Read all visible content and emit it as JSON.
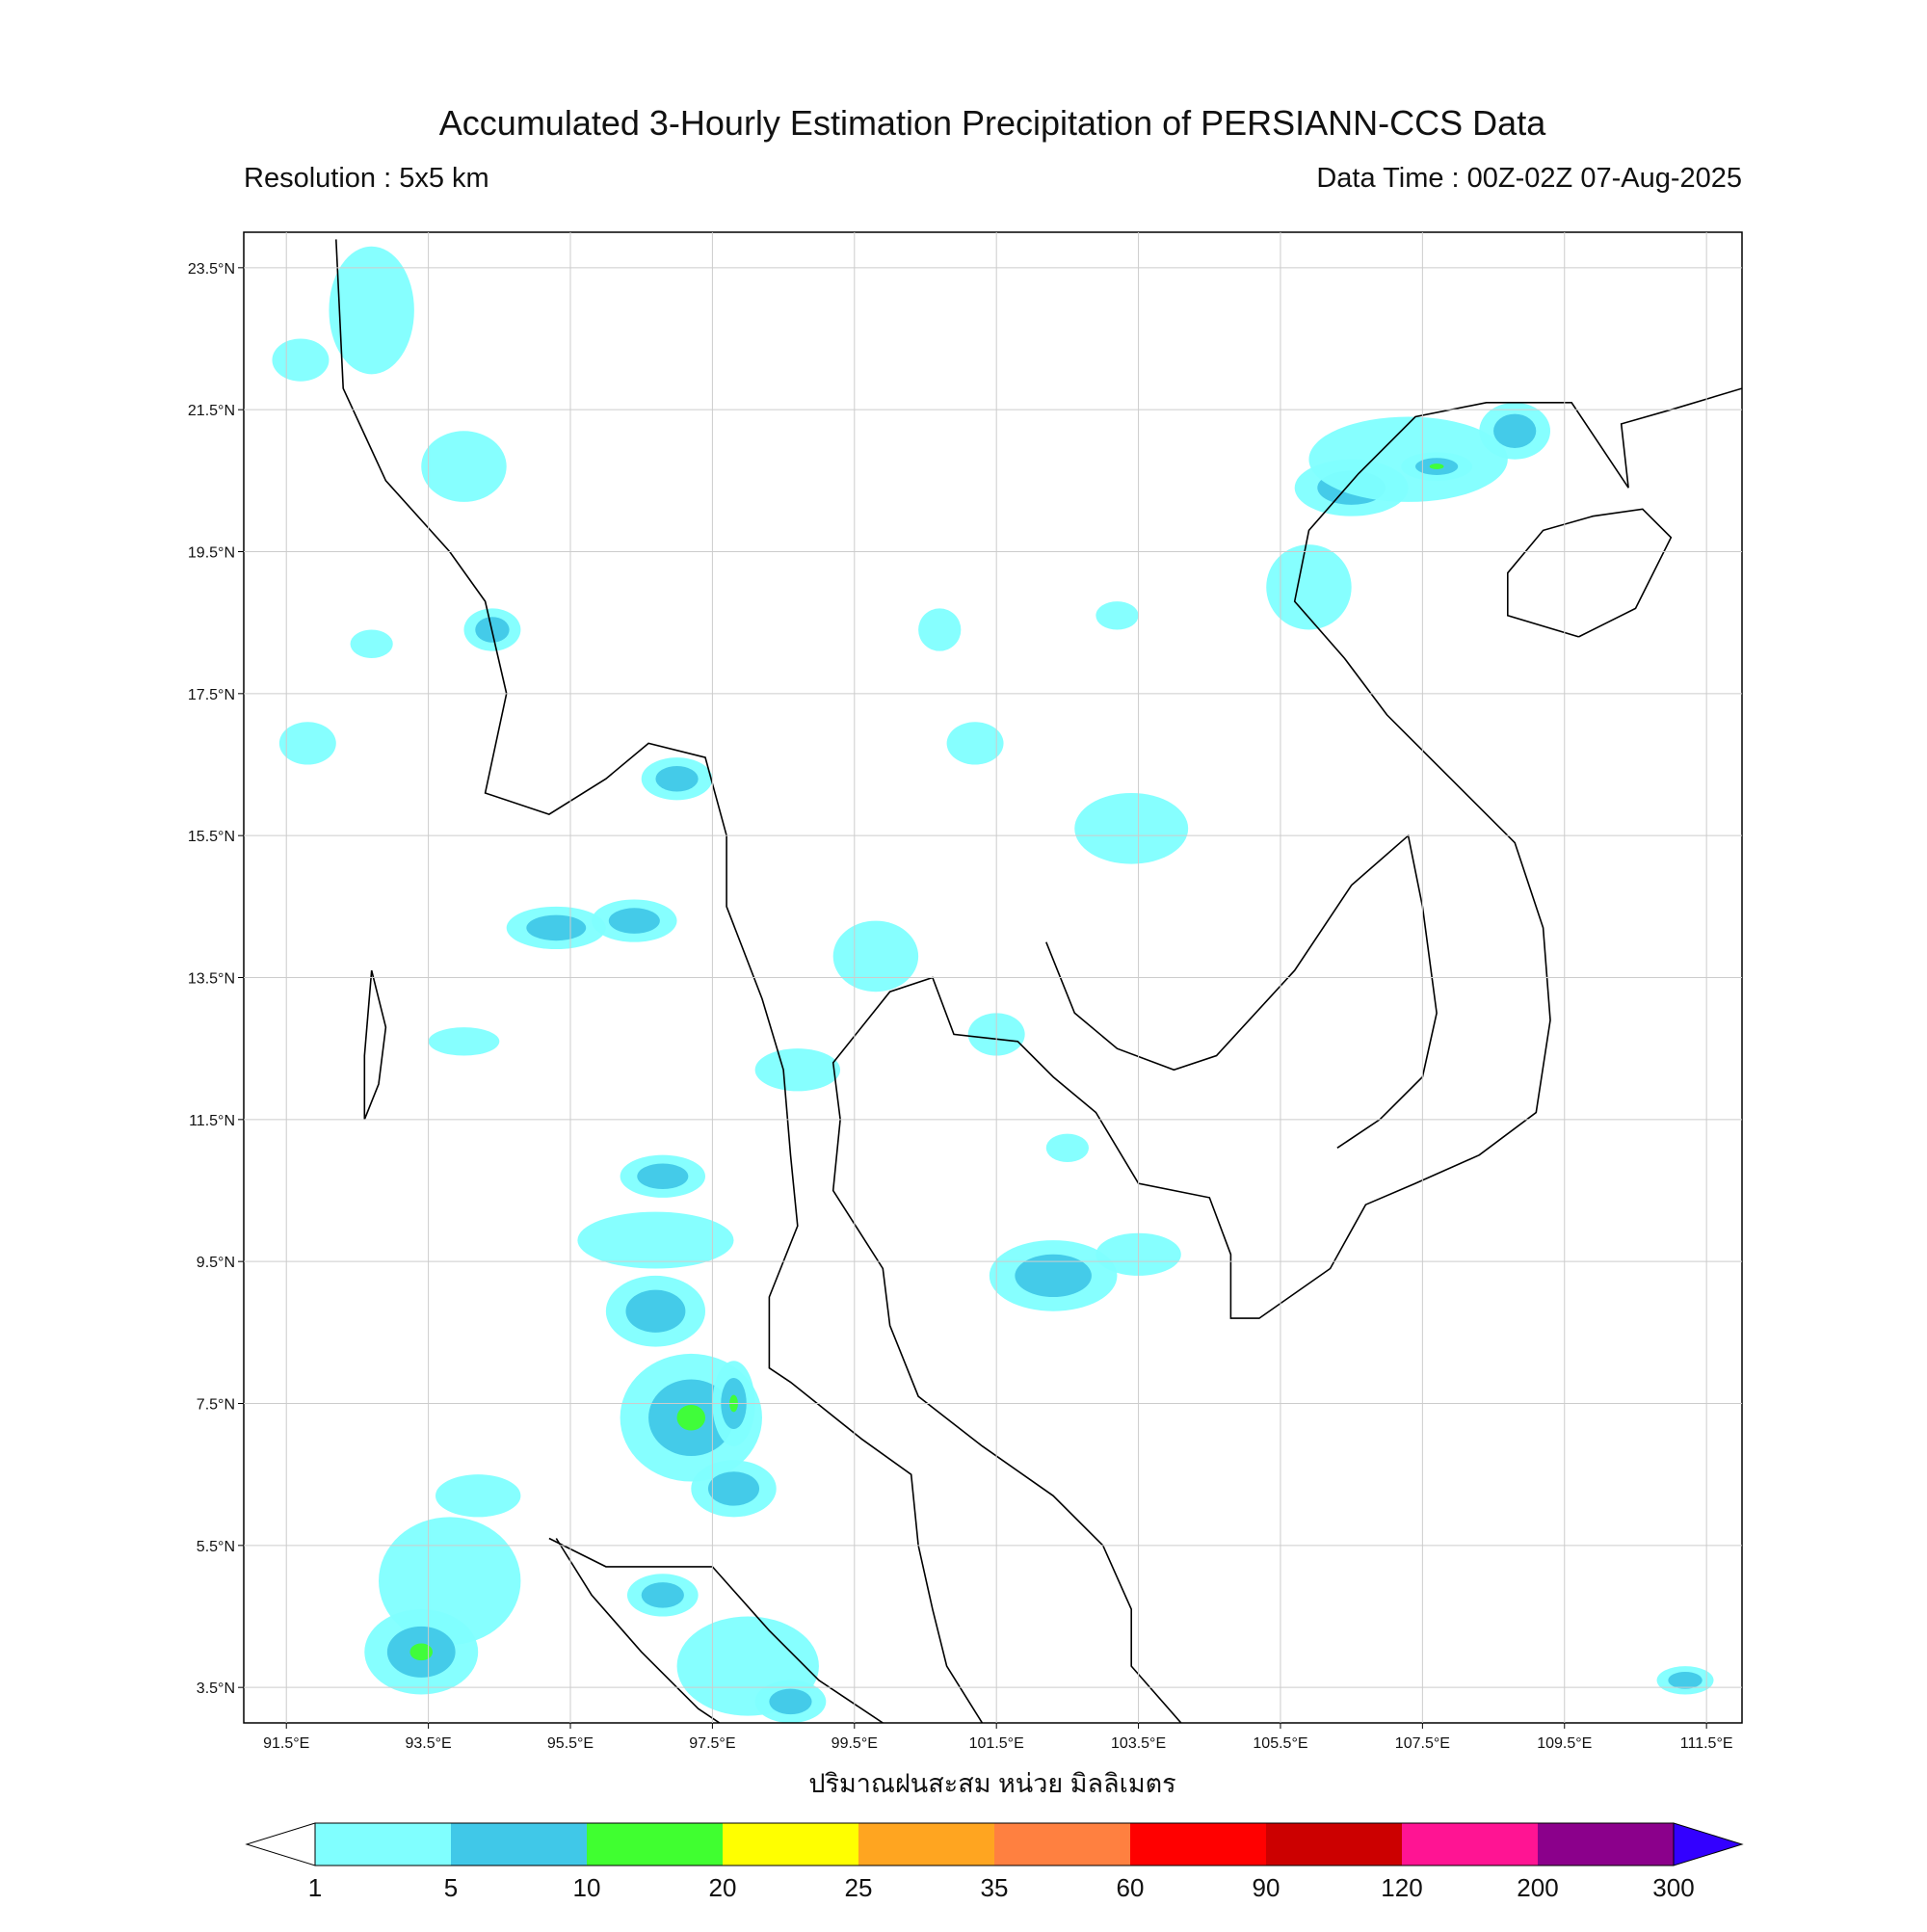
{
  "map": {
    "title": "Accumulated 3-Hourly Estimation Precipitation of PERSIANN-CCS Data",
    "resolution": "Resolution : 5x5 km",
    "data_time": "Data Time : 00Z-02Z 07-Aug-2025",
    "x_axis_label": "ปริมาณฝนสะสม หน่วย มิลลิเมตร",
    "xlim": [
      90.9,
      112
    ],
    "ylim": [
      3,
      24
    ],
    "grid": true,
    "xticks": [
      {
        "value": 91.5,
        "label": "91.5°E"
      },
      {
        "value": 93.5,
        "label": "93.5°E"
      },
      {
        "value": 95.5,
        "label": "95.5°E"
      },
      {
        "value": 97.5,
        "label": "97.5°E"
      },
      {
        "value": 99.5,
        "label": "99.5°E"
      },
      {
        "value": 101.5,
        "label": "101.5°E"
      },
      {
        "value": 103.5,
        "label": "103.5°E"
      },
      {
        "value": 105.5,
        "label": "105.5°E"
      },
      {
        "value": 107.5,
        "label": "107.5°E"
      },
      {
        "value": 109.5,
        "label": "109.5°E"
      },
      {
        "value": 111.5,
        "label": "111.5°E"
      }
    ],
    "yticks": [
      {
        "value": 3.5,
        "label": "3.5°N"
      },
      {
        "value": 5.5,
        "label": "5.5°N"
      },
      {
        "value": 7.5,
        "label": "7.5°N"
      },
      {
        "value": 9.5,
        "label": "9.5°N"
      },
      {
        "value": 11.5,
        "label": "11.5°N"
      },
      {
        "value": 13.5,
        "label": "13.5°N"
      },
      {
        "value": 15.5,
        "label": "15.5°N"
      },
      {
        "value": 17.5,
        "label": "17.5°N"
      },
      {
        "value": 19.5,
        "label": "19.5°N"
      },
      {
        "value": 21.5,
        "label": "21.5°N"
      },
      {
        "value": 23.5,
        "label": "23.5°N"
      }
    ],
    "colorbar": {
      "levels": [
        1,
        5,
        10,
        20,
        25,
        35,
        60,
        90,
        120,
        200,
        300
      ],
      "colors": [
        "#80ffff",
        "#40c8e8",
        "#40ff30",
        "#ffff00",
        "#ffa520",
        "#ff8040",
        "#ff0000",
        "#cc0000",
        "#ff1493",
        "#8b008b"
      ],
      "under_color": "#ffffff",
      "over_color": "#3300ff"
    }
  }
}
